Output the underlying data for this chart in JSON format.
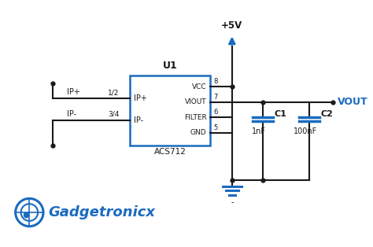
{
  "bg_color": "#ffffff",
  "line_color": "#1a1a1a",
  "blue_color": "#1a6bbf",
  "cap_color": "#1a6bbf",
  "ic_label": "U1",
  "ic_sublabel": "ACS712",
  "ic_pins_left": [
    "IP+",
    "IP-"
  ],
  "ic_pins_right": [
    "VCC",
    "VIOUT",
    "FILTER",
    "GND"
  ],
  "pin_numbers_left": [
    "1/2",
    "3/4"
  ],
  "pin_numbers_right": [
    "8",
    "7",
    "6",
    "5"
  ],
  "vcc_label": "+5V",
  "vout_label": "VOUT",
  "c1_label": "C1",
  "c1_value": "1nF",
  "c2_label": "C2",
  "c2_value": "100nF",
  "ip_plus_label": "IP+",
  "ip_minus_label": "IP-",
  "gnd_minus": "-",
  "logo_text": "Gadgetronicx"
}
